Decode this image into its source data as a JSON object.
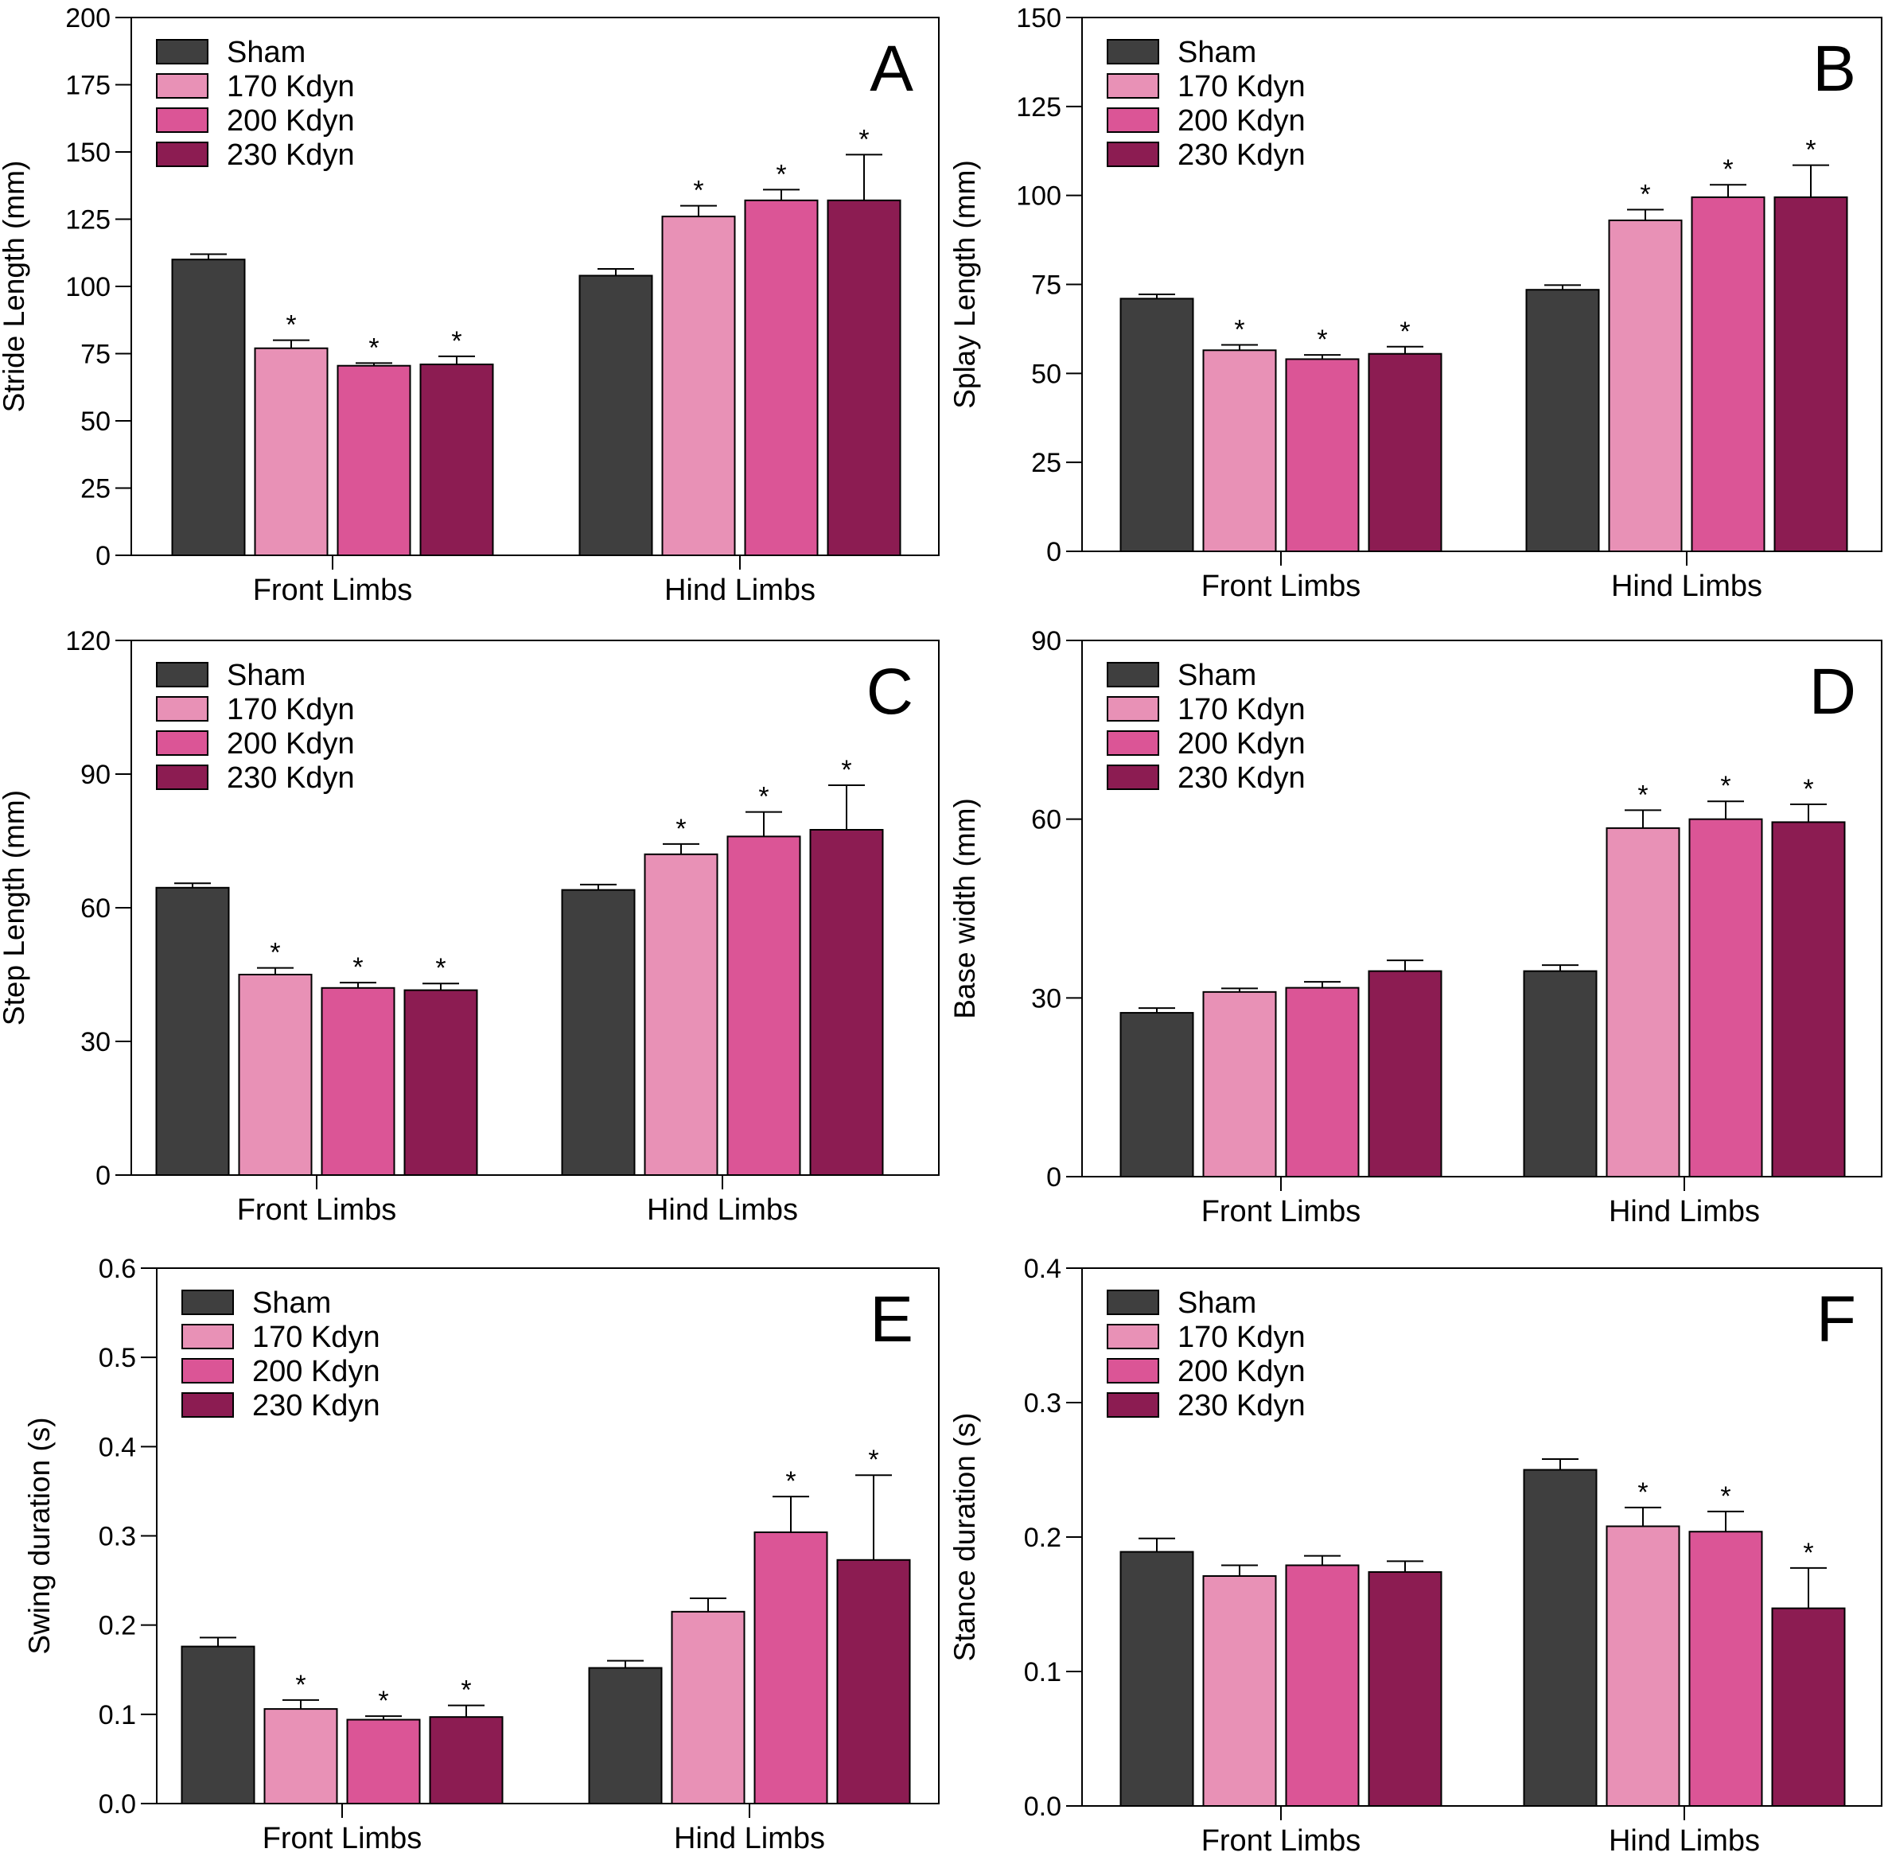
{
  "colors": {
    "Sham": "#3f3f3f",
    "170 Kdyn": "#e891b6",
    "200 Kdyn": "#db5596",
    "230 Kdyn": "#8c1c52"
  },
  "chart_data": [
    {
      "type": "bar",
      "panel": "A",
      "categories": [
        "Front Limbs",
        "Hind Limbs"
      ],
      "ylabel": "Stride Length (mm)",
      "ylim": [
        0,
        200
      ],
      "yticks": [
        0,
        25,
        50,
        75,
        100,
        125,
        150,
        175,
        200
      ],
      "legend": "top-left",
      "series": [
        {
          "name": "Sham",
          "values": [
            110,
            104
          ],
          "errors": [
            2,
            2.5
          ],
          "significant": [
            false,
            false
          ]
        },
        {
          "name": "170 Kdyn",
          "values": [
            77,
            126
          ],
          "errors": [
            3,
            4
          ],
          "significant": [
            true,
            true
          ]
        },
        {
          "name": "200 Kdyn",
          "values": [
            70.5,
            132
          ],
          "errors": [
            1,
            4
          ],
          "significant": [
            true,
            true
          ]
        },
        {
          "name": "230 Kdyn",
          "values": [
            71,
            132
          ],
          "errors": [
            3,
            17
          ],
          "significant": [
            true,
            true
          ]
        }
      ]
    },
    {
      "type": "bar",
      "panel": "B",
      "categories": [
        "Front Limbs",
        "Hind Limbs"
      ],
      "ylabel": "Splay Length (mm)",
      "ylim": [
        0,
        150
      ],
      "yticks": [
        0,
        25,
        50,
        75,
        100,
        125,
        150
      ],
      "legend": "top-left",
      "series": [
        {
          "name": "Sham",
          "values": [
            71,
            73.5
          ],
          "errors": [
            1.2,
            1.3
          ],
          "significant": [
            false,
            false
          ]
        },
        {
          "name": "170 Kdyn",
          "values": [
            56.5,
            93
          ],
          "errors": [
            1.5,
            3
          ],
          "significant": [
            true,
            true
          ]
        },
        {
          "name": "200 Kdyn",
          "values": [
            54,
            99.5
          ],
          "errors": [
            1.2,
            3.5
          ],
          "significant": [
            true,
            true
          ]
        },
        {
          "name": "230 Kdyn",
          "values": [
            55.5,
            99.5
          ],
          "errors": [
            2,
            9
          ],
          "significant": [
            true,
            true
          ]
        }
      ]
    },
    {
      "type": "bar",
      "panel": "C",
      "categories": [
        "Front Limbs",
        "Hind Limbs"
      ],
      "ylabel": "Step Length (mm)",
      "ylim": [
        0,
        120
      ],
      "yticks": [
        0,
        30,
        60,
        90,
        120
      ],
      "legend": "top-left",
      "series": [
        {
          "name": "Sham",
          "values": [
            64.5,
            64
          ],
          "errors": [
            1,
            1.2
          ],
          "significant": [
            false,
            false
          ]
        },
        {
          "name": "170 Kdyn",
          "values": [
            45,
            72
          ],
          "errors": [
            1.5,
            2.3
          ],
          "significant": [
            true,
            true
          ]
        },
        {
          "name": "200 Kdyn",
          "values": [
            42,
            76
          ],
          "errors": [
            1.2,
            5.5
          ],
          "significant": [
            true,
            true
          ]
        },
        {
          "name": "230 Kdyn",
          "values": [
            41.5,
            77.5
          ],
          "errors": [
            1.5,
            10
          ],
          "significant": [
            true,
            true
          ]
        }
      ]
    },
    {
      "type": "bar",
      "panel": "D",
      "categories": [
        "Front Limbs",
        "Hind Limbs"
      ],
      "ylabel": "Base width (mm)",
      "ylim": [
        0,
        90
      ],
      "yticks": [
        0,
        30,
        60,
        90
      ],
      "legend": "top-left",
      "series": [
        {
          "name": "Sham",
          "values": [
            27.5,
            34.5
          ],
          "errors": [
            0.8,
            1
          ],
          "significant": [
            false,
            false
          ]
        },
        {
          "name": "170 Kdyn",
          "values": [
            31,
            58.5
          ],
          "errors": [
            0.6,
            3
          ],
          "significant": [
            false,
            true
          ]
        },
        {
          "name": "200 Kdyn",
          "values": [
            31.7,
            60
          ],
          "errors": [
            1,
            3
          ],
          "significant": [
            false,
            true
          ]
        },
        {
          "name": "230 Kdyn",
          "values": [
            34.5,
            59.5
          ],
          "errors": [
            1.8,
            3
          ],
          "significant": [
            false,
            true
          ]
        }
      ]
    },
    {
      "type": "bar",
      "panel": "E",
      "categories": [
        "Front Limbs",
        "Hind Limbs"
      ],
      "ylabel": "Swing duration (s)",
      "ylim": [
        0,
        0.6
      ],
      "yticks": [
        "0.0",
        "0.1",
        "0.2",
        "0.3",
        "0.4",
        "0.5",
        "0.6"
      ],
      "legend": "top-left",
      "series": [
        {
          "name": "Sham",
          "values": [
            0.176,
            0.152
          ],
          "errors": [
            0.01,
            0.008
          ],
          "significant": [
            false,
            false
          ]
        },
        {
          "name": "170 Kdyn",
          "values": [
            0.106,
            0.215
          ],
          "errors": [
            0.01,
            0.015
          ],
          "significant": [
            true,
            false
          ]
        },
        {
          "name": "200 Kdyn",
          "values": [
            0.094,
            0.304
          ],
          "errors": [
            0.004,
            0.04
          ],
          "significant": [
            true,
            true
          ]
        },
        {
          "name": "230 Kdyn",
          "values": [
            0.097,
            0.273
          ],
          "errors": [
            0.013,
            0.095
          ],
          "significant": [
            true,
            true
          ]
        }
      ]
    },
    {
      "type": "bar",
      "panel": "F",
      "categories": [
        "Front Limbs",
        "Hind Limbs"
      ],
      "ylabel": "Stance duration (s)",
      "ylim": [
        0,
        0.4
      ],
      "yticks": [
        "0.0",
        "0.1",
        "0.2",
        "0.3",
        "0.4"
      ],
      "legend": "top-left",
      "series": [
        {
          "name": "Sham",
          "values": [
            0.189,
            0.25
          ],
          "errors": [
            0.01,
            0.008
          ],
          "significant": [
            false,
            false
          ]
        },
        {
          "name": "170 Kdyn",
          "values": [
            0.171,
            0.208
          ],
          "errors": [
            0.008,
            0.014
          ],
          "significant": [
            false,
            true
          ]
        },
        {
          "name": "200 Kdyn",
          "values": [
            0.179,
            0.204
          ],
          "errors": [
            0.007,
            0.015
          ],
          "significant": [
            false,
            true
          ]
        },
        {
          "name": "230 Kdyn",
          "values": [
            0.174,
            0.147
          ],
          "errors": [
            0.008,
            0.03
          ],
          "significant": [
            false,
            true
          ]
        }
      ]
    }
  ]
}
